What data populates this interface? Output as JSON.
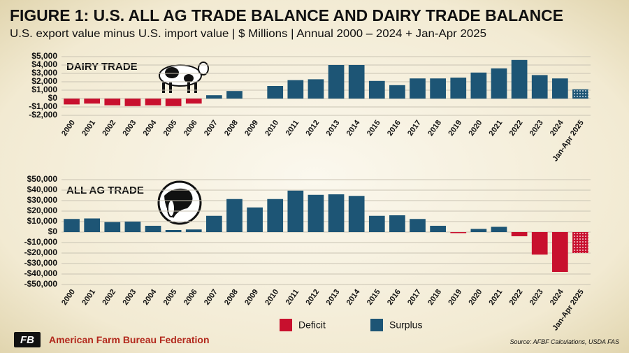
{
  "header": {
    "title": "FIGURE 1: U.S. ALL AG TRADE BALANCE AND DAIRY TRADE BALANCE",
    "subtitle": "U.S. export value minus U.S. import value | $ Millions | Annual 2000 – 2024 + Jan-Apr 2025"
  },
  "legend": [
    {
      "name": "Deficit",
      "color": "#c8102e"
    },
    {
      "name": "Surplus",
      "color": "#1d5575"
    }
  ],
  "chart_data": [
    {
      "type": "bar",
      "title": "DAIRY TRADE",
      "categories": [
        "2000",
        "2001",
        "2002",
        "2003",
        "2004",
        "2005",
        "2006",
        "2007",
        "2008",
        "2009",
        "2010",
        "2011",
        "2012",
        "2013",
        "2014",
        "2015",
        "2016",
        "2017",
        "2018",
        "2019",
        "2020",
        "2021",
        "2022",
        "2023",
        "2024",
        "Jan-Apr 2025"
      ],
      "values": [
        -700,
        -600,
        -800,
        -900,
        -800,
        -900,
        -600,
        400,
        900,
        0,
        1500,
        2200,
        2300,
        4000,
        4000,
        2100,
        1600,
        2400,
        2400,
        2500,
        3100,
        3600,
        4600,
        2800,
        2400,
        1100
      ],
      "dotted_categories": [
        "Jan-Apr 2025"
      ],
      "ylim": [
        -2000,
        5000
      ],
      "yticks": [
        {
          "value": -2000,
          "label": "-$2,000"
        },
        {
          "value": -1000,
          "label": "-$1,000"
        },
        {
          "value": 0,
          "label": "$0"
        },
        {
          "value": 1000,
          "label": "$1,000"
        },
        {
          "value": 2000,
          "label": "$2,000"
        },
        {
          "value": 3000,
          "label": "$3,000"
        },
        {
          "value": 4000,
          "label": "$4,000"
        },
        {
          "value": 5000,
          "label": "$5,000"
        }
      ],
      "grid": true
    },
    {
      "type": "bar",
      "title": "ALL AG TRADE",
      "categories": [
        "2000",
        "2001",
        "2002",
        "2003",
        "2004",
        "2005",
        "2006",
        "2007",
        "2008",
        "2009",
        "2010",
        "2011",
        "2012",
        "2013",
        "2014",
        "2015",
        "2016",
        "2017",
        "2018",
        "2019",
        "2020",
        "2021",
        "2022",
        "2023",
        "2024",
        "Jan-Apr 2025"
      ],
      "values": [
        12500,
        13000,
        9500,
        10000,
        6000,
        2000,
        2500,
        15500,
        31500,
        23500,
        31500,
        39500,
        35500,
        36000,
        34500,
        15500,
        16000,
        12500,
        6000,
        -1000,
        3000,
        5000,
        -4000,
        -21500,
        -38000,
        -20000
      ],
      "dotted_categories": [
        "Jan-Apr 2025"
      ],
      "ylim": [
        -50000,
        50000
      ],
      "yticks": [
        {
          "value": -50000,
          "label": "-$50,000"
        },
        {
          "value": -40000,
          "label": "-$40,000"
        },
        {
          "value": -30000,
          "label": "-$30,000"
        },
        {
          "value": -20000,
          "label": "-$20,000"
        },
        {
          "value": -10000,
          "label": "-$10,000"
        },
        {
          "value": 0,
          "label": "$0"
        },
        {
          "value": 10000,
          "label": "$10,000"
        },
        {
          "value": 20000,
          "label": "$20,000"
        },
        {
          "value": 30000,
          "label": "$30,000"
        },
        {
          "value": 40000,
          "label": "$40,000"
        },
        {
          "value": 50000,
          "label": "$50,000"
        }
      ],
      "grid": true
    }
  ],
  "footer": {
    "org": "American Farm Bureau Federation",
    "source": "Source: AFBF Calculations, USDA FAS"
  }
}
